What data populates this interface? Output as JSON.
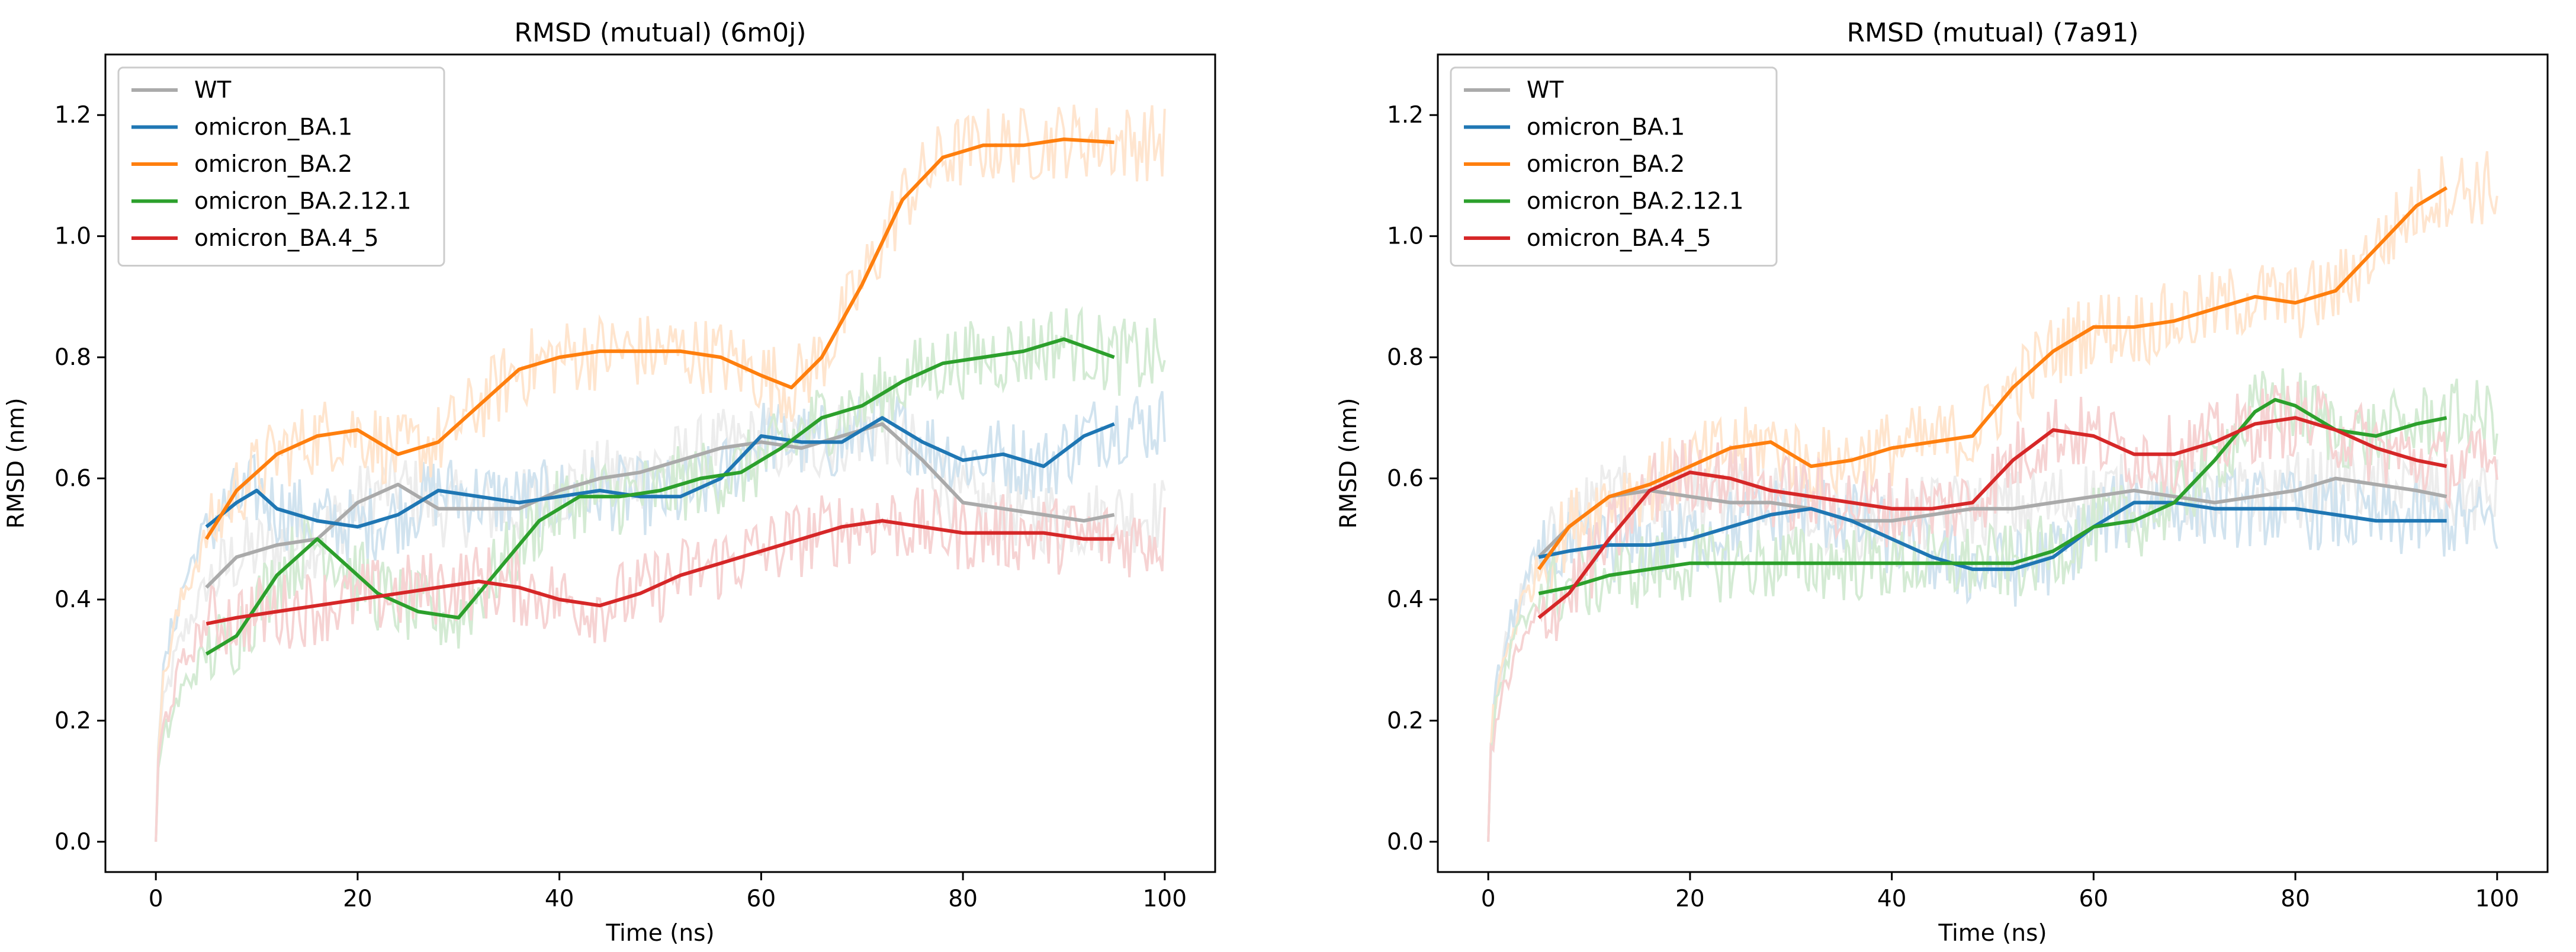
{
  "colors": {
    "WT": "#aaaaaa",
    "omicron_BA.1": "#1f77b4",
    "omicron_BA.2": "#ff7f0e",
    "omicron_BA.2.12.1": "#2ca02c",
    "omicron_BA.4_5": "#d62728"
  },
  "chart_data": [
    {
      "type": "line",
      "title": "RMSD (mutual) (6m0j)",
      "xlabel": "Time (ns)",
      "ylabel": "RMSD (nm)",
      "xlim": [
        -5,
        105
      ],
      "ylim": [
        -0.05,
        1.3
      ],
      "xticks": [
        "0",
        "20",
        "40",
        "60",
        "80",
        "100"
      ],
      "yticks": [
        "0.0",
        "0.2",
        "0.4",
        "0.6",
        "0.8",
        "1.0",
        "1.2"
      ],
      "legend": "upper-left",
      "series": [
        {
          "name": "WT",
          "x": [
            5,
            8,
            12,
            16,
            20,
            24,
            28,
            32,
            36,
            40,
            44,
            48,
            52,
            56,
            60,
            64,
            68,
            72,
            76,
            80,
            84,
            88,
            92,
            95
          ],
          "y": [
            0.42,
            0.47,
            0.49,
            0.5,
            0.56,
            0.59,
            0.55,
            0.55,
            0.55,
            0.58,
            0.6,
            0.61,
            0.63,
            0.65,
            0.66,
            0.65,
            0.67,
            0.69,
            0.63,
            0.56,
            0.55,
            0.54,
            0.53,
            0.54
          ]
        },
        {
          "name": "omicron_BA.1",
          "x": [
            5,
            8,
            10,
            12,
            16,
            20,
            24,
            28,
            32,
            36,
            40,
            44,
            48,
            52,
            56,
            60,
            64,
            68,
            72,
            76,
            80,
            84,
            88,
            92,
            95
          ],
          "y": [
            0.52,
            0.56,
            0.58,
            0.55,
            0.53,
            0.52,
            0.54,
            0.58,
            0.57,
            0.56,
            0.57,
            0.58,
            0.57,
            0.57,
            0.6,
            0.67,
            0.66,
            0.66,
            0.7,
            0.66,
            0.63,
            0.64,
            0.62,
            0.67,
            0.69
          ]
        },
        {
          "name": "omicron_BA.2",
          "x": [
            5,
            8,
            12,
            16,
            20,
            24,
            28,
            32,
            36,
            40,
            44,
            48,
            52,
            56,
            60,
            63,
            66,
            70,
            74,
            78,
            82,
            86,
            90,
            95
          ],
          "y": [
            0.5,
            0.58,
            0.64,
            0.67,
            0.68,
            0.64,
            0.66,
            0.72,
            0.78,
            0.8,
            0.81,
            0.81,
            0.81,
            0.8,
            0.77,
            0.75,
            0.8,
            0.92,
            1.06,
            1.13,
            1.15,
            1.15,
            1.16,
            1.155
          ]
        },
        {
          "name": "omicron_BA.2.12.1",
          "x": [
            5,
            8,
            12,
            16,
            18,
            22,
            26,
            30,
            34,
            38,
            42,
            46,
            50,
            54,
            58,
            62,
            66,
            70,
            74,
            78,
            82,
            86,
            90,
            95
          ],
          "y": [
            0.31,
            0.34,
            0.44,
            0.5,
            0.47,
            0.41,
            0.38,
            0.37,
            0.45,
            0.53,
            0.57,
            0.57,
            0.58,
            0.6,
            0.61,
            0.65,
            0.7,
            0.72,
            0.76,
            0.79,
            0.8,
            0.81,
            0.83,
            0.8
          ]
        },
        {
          "name": "omicron_BA.4_5",
          "x": [
            5,
            8,
            12,
            16,
            20,
            24,
            28,
            32,
            36,
            40,
            44,
            48,
            52,
            56,
            60,
            64,
            68,
            72,
            76,
            80,
            84,
            88,
            92,
            95
          ],
          "y": [
            0.36,
            0.37,
            0.38,
            0.39,
            0.4,
            0.41,
            0.42,
            0.43,
            0.42,
            0.4,
            0.39,
            0.41,
            0.44,
            0.46,
            0.48,
            0.5,
            0.52,
            0.53,
            0.52,
            0.51,
            0.51,
            0.51,
            0.5,
            0.5
          ]
        }
      ]
    },
    {
      "type": "line",
      "title": "RMSD (mutual) (7a91)",
      "xlabel": "Time (ns)",
      "ylabel": "RMSD (nm)",
      "xlim": [
        -5,
        105
      ],
      "ylim": [
        -0.05,
        1.3
      ],
      "xticks": [
        "0",
        "20",
        "40",
        "60",
        "80",
        "100"
      ],
      "yticks": [
        "0.0",
        "0.2",
        "0.4",
        "0.6",
        "0.8",
        "1.0",
        "1.2"
      ],
      "legend": "upper-left",
      "series": [
        {
          "name": "WT",
          "x": [
            5,
            8,
            12,
            16,
            20,
            24,
            28,
            32,
            36,
            40,
            44,
            48,
            52,
            56,
            60,
            64,
            68,
            72,
            76,
            80,
            84,
            88,
            92,
            95
          ],
          "y": [
            0.47,
            0.52,
            0.57,
            0.58,
            0.57,
            0.56,
            0.56,
            0.55,
            0.53,
            0.53,
            0.54,
            0.55,
            0.55,
            0.56,
            0.57,
            0.58,
            0.57,
            0.56,
            0.57,
            0.58,
            0.6,
            0.59,
            0.58,
            0.57
          ]
        },
        {
          "name": "omicron_BA.1",
          "x": [
            5,
            8,
            12,
            16,
            20,
            24,
            28,
            32,
            36,
            40,
            44,
            48,
            52,
            56,
            60,
            64,
            68,
            72,
            76,
            80,
            84,
            88,
            92,
            95
          ],
          "y": [
            0.47,
            0.48,
            0.49,
            0.49,
            0.5,
            0.52,
            0.54,
            0.55,
            0.53,
            0.5,
            0.47,
            0.45,
            0.45,
            0.47,
            0.52,
            0.56,
            0.56,
            0.55,
            0.55,
            0.55,
            0.54,
            0.53,
            0.53,
            0.53
          ]
        },
        {
          "name": "omicron_BA.2",
          "x": [
            5,
            8,
            12,
            16,
            20,
            24,
            28,
            32,
            36,
            40,
            44,
            48,
            52,
            56,
            60,
            64,
            68,
            72,
            76,
            80,
            84,
            88,
            92,
            95
          ],
          "y": [
            0.45,
            0.52,
            0.57,
            0.59,
            0.62,
            0.65,
            0.66,
            0.62,
            0.63,
            0.65,
            0.66,
            0.67,
            0.75,
            0.81,
            0.85,
            0.85,
            0.86,
            0.88,
            0.9,
            0.89,
            0.91,
            0.98,
            1.05,
            1.08
          ]
        },
        {
          "name": "omicron_BA.2.12.1",
          "x": [
            5,
            8,
            12,
            16,
            20,
            24,
            28,
            32,
            36,
            40,
            44,
            48,
            52,
            56,
            60,
            64,
            68,
            72,
            76,
            78,
            80,
            84,
            88,
            92,
            95
          ],
          "y": [
            0.41,
            0.42,
            0.44,
            0.45,
            0.46,
            0.46,
            0.46,
            0.46,
            0.46,
            0.46,
            0.46,
            0.46,
            0.46,
            0.48,
            0.52,
            0.53,
            0.56,
            0.63,
            0.71,
            0.73,
            0.72,
            0.68,
            0.67,
            0.69,
            0.7
          ]
        },
        {
          "name": "omicron_BA.4_5",
          "x": [
            5,
            8,
            12,
            16,
            20,
            24,
            28,
            32,
            36,
            40,
            44,
            48,
            52,
            56,
            60,
            64,
            68,
            72,
            76,
            80,
            84,
            88,
            92,
            95
          ],
          "y": [
            0.37,
            0.41,
            0.5,
            0.58,
            0.61,
            0.6,
            0.58,
            0.57,
            0.56,
            0.55,
            0.55,
            0.56,
            0.63,
            0.68,
            0.67,
            0.64,
            0.64,
            0.66,
            0.69,
            0.7,
            0.68,
            0.65,
            0.63,
            0.62
          ]
        }
      ]
    }
  ]
}
